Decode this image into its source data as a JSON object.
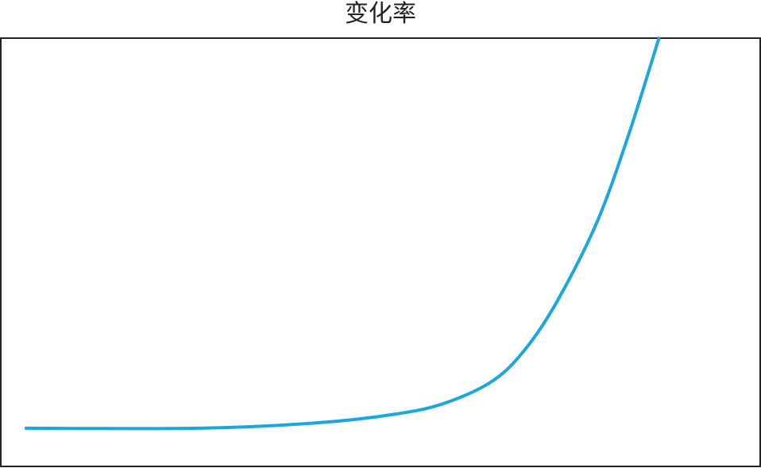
{
  "chart_data": {
    "type": "line",
    "title": "变化率",
    "xlabel": "",
    "ylabel": "",
    "xlim": [
      -4,
      116
    ],
    "ylim": [
      -9.8,
      100
    ],
    "grid": false,
    "axes_ticks": false,
    "line_color": "#1aa7dc",
    "series": [
      {
        "x": [
          0,
          27.3,
          46.2,
          58.7,
          66.3,
          73.8,
          78.9,
          83.9,
          90.2,
          95.2,
          100
        ],
        "y": [
          0,
          0,
          1.4,
          3.7,
          6.5,
          12.2,
          20.3,
          32.5,
          52.8,
          75.2,
          100
        ]
      }
    ]
  }
}
